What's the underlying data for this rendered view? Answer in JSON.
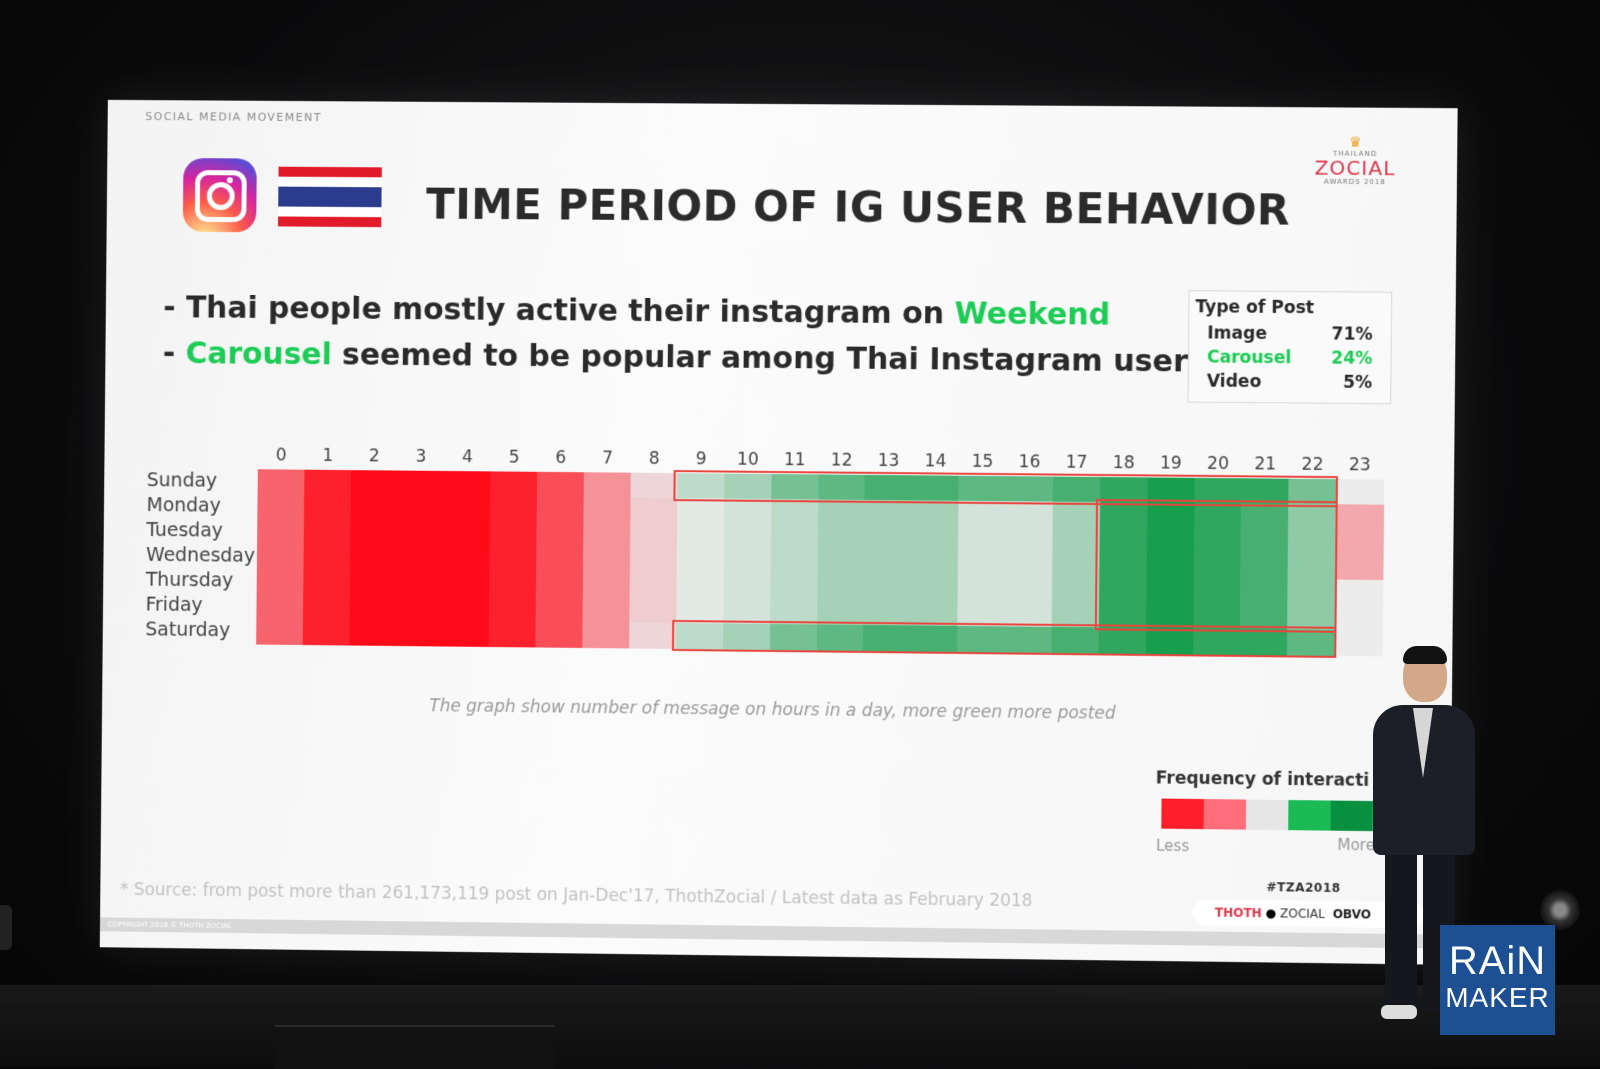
{
  "slide": {
    "section_label": "SOCIAL MEDIA MOVEMENT",
    "title": "TIME PERIOD OF IG USER BEHAVIOR",
    "logo": {
      "small": "THAILAND",
      "brand": "ZOCIAL",
      "sub": "AWARDS 2018"
    },
    "bullets": [
      {
        "prefix": "- Thai people mostly active their instagram on ",
        "highlight": "Weekend",
        "suffix": ""
      },
      {
        "prefix": "- ",
        "highlight": "Carousel",
        "suffix": " seemed to be popular among Thai Instagram user"
      }
    ],
    "post_types": {
      "header": "Type of Post",
      "rows": [
        {
          "label": "Image",
          "value": "71%",
          "highlight": false
        },
        {
          "label": "Carousel",
          "value": "24%",
          "highlight": true
        },
        {
          "label": "Video",
          "value": "5%",
          "highlight": false
        }
      ]
    },
    "caption": "The graph show number of message on hours in a day, more green more posted",
    "legend": {
      "title": "Frequency of interacti",
      "less": "Less",
      "more": "More"
    },
    "source": "* Source: from post more than 261,173,119 post on Jan-Dec'17, ThothZocial / Latest data as  February 2018",
    "hashtag": "#TZA2018",
    "partners": {
      "thoth": "THOTH",
      "zocial": "ZOCIAL",
      "obv": "OBVO"
    },
    "copyright": "COPYRIGHT 2018 © THOTH ZOCIAL"
  },
  "chart_data": {
    "type": "heatmap",
    "x": [
      "0",
      "1",
      "2",
      "3",
      "4",
      "5",
      "6",
      "7",
      "8",
      "9",
      "10",
      "11",
      "12",
      "13",
      "14",
      "15",
      "16",
      "17",
      "18",
      "19",
      "20",
      "21",
      "22",
      "23"
    ],
    "y": [
      "Sunday",
      "Monday",
      "Tuesday",
      "Wednesday",
      "Thursday",
      "Friday",
      "Saturday"
    ],
    "scale_note": "values -5 (most red, less) to +5 (most green, more)",
    "rows": [
      [
        -3,
        -4.5,
        -5,
        -5,
        -5,
        -4.5,
        -3.5,
        -2,
        -0.5,
        1,
        1.5,
        2.5,
        3,
        3.5,
        3.5,
        3,
        3,
        3.5,
        4,
        4.5,
        4,
        4,
        2.5,
        0
      ],
      [
        -3,
        -4.5,
        -5,
        -5,
        -5,
        -4.5,
        -3.5,
        -2,
        -0.7,
        0.2,
        0.5,
        1,
        1.5,
        1.5,
        1.5,
        0.5,
        0.5,
        1.5,
        4,
        4.5,
        4,
        3.5,
        2,
        -1.5
      ],
      [
        -3,
        -4.5,
        -5,
        -5,
        -5,
        -4.5,
        -3.5,
        -2,
        -0.7,
        0.2,
        0.5,
        1,
        1.5,
        1.5,
        1.5,
        0.5,
        0.5,
        1.5,
        4,
        4.5,
        4,
        3.5,
        2,
        -1.5
      ],
      [
        -3,
        -4.5,
        -5,
        -5,
        -5,
        -4.5,
        -3.5,
        -2,
        -0.7,
        0.2,
        0.5,
        1,
        1.5,
        1.5,
        1.5,
        0.5,
        0.5,
        1.5,
        4,
        4.5,
        4,
        3.5,
        2,
        -1.5
      ],
      [
        -3,
        -4.5,
        -5,
        -5,
        -5,
        -4.5,
        -3.5,
        -2,
        -0.7,
        0.2,
        0.5,
        1,
        1.5,
        1.5,
        1.5,
        0.5,
        0.5,
        1.5,
        4,
        4.5,
        4,
        3.5,
        2,
        0
      ],
      [
        -3,
        -4.5,
        -5,
        -5,
        -5,
        -4.5,
        -3.5,
        -2,
        -0.7,
        0.2,
        0.5,
        1,
        1.5,
        1.5,
        1.5,
        0.5,
        0.5,
        1.5,
        4,
        4.5,
        4,
        3.5,
        2,
        0
      ],
      [
        -3,
        -4.5,
        -5,
        -5,
        -5,
        -4.5,
        -3.5,
        -2,
        -0.5,
        1,
        1.5,
        2.5,
        3,
        3.5,
        3.5,
        3,
        3,
        3.5,
        4,
        4.5,
        4,
        4,
        3,
        0
      ]
    ],
    "highlights": [
      {
        "rows": [
          0,
          0
        ],
        "cols": [
          9,
          22
        ]
      },
      {
        "rows": [
          1,
          5
        ],
        "cols": [
          18,
          22
        ]
      },
      {
        "rows": [
          6,
          6
        ],
        "cols": [
          9,
          22
        ]
      }
    ]
  },
  "brand_badge": {
    "line1": "RAiN",
    "line2": "MAKER"
  },
  "colors": {
    "red": "#ff0a18",
    "green": "#00a040",
    "neutral": "#ececec",
    "accent_green": "#1ccc55"
  }
}
